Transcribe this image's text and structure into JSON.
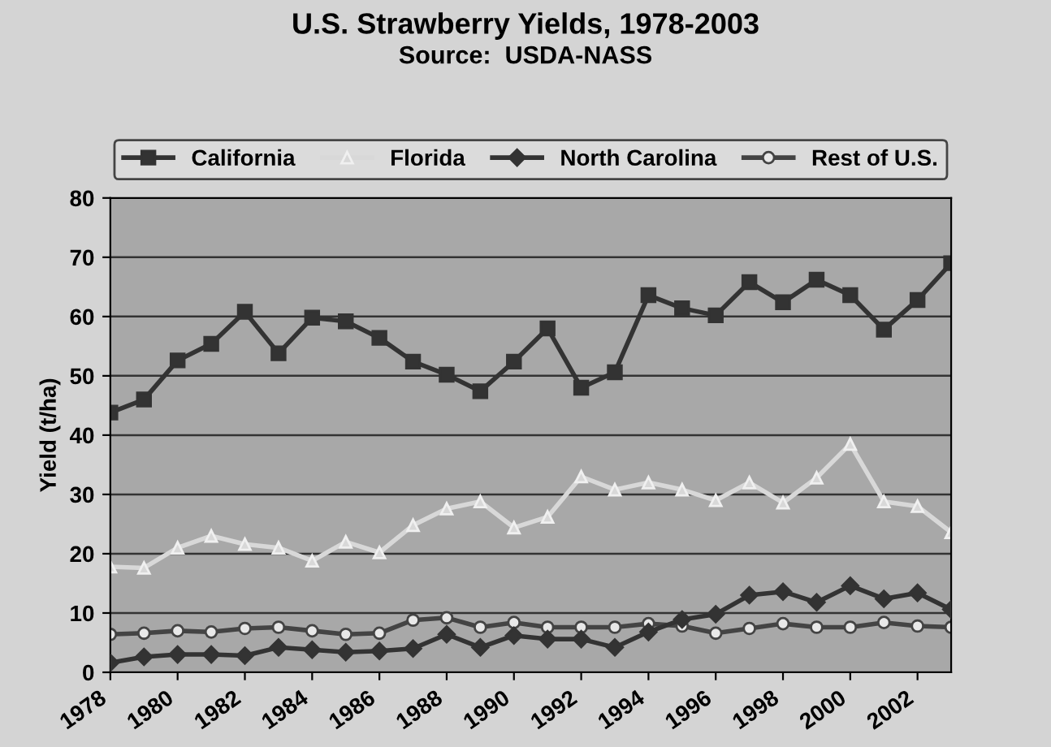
{
  "chart_data": {
    "type": "line",
    "title": "U.S. Strawberry Yields, 1978-2003",
    "subtitle": "Source:  USDA-NASS",
    "ylabel": "Yield (t/ha)",
    "x": [
      1978,
      1979,
      1980,
      1981,
      1982,
      1983,
      1984,
      1985,
      1986,
      1987,
      1988,
      1989,
      1990,
      1991,
      1992,
      1993,
      1994,
      1995,
      1996,
      1997,
      1998,
      1999,
      2000,
      2001,
      2002,
      2003
    ],
    "series": [
      {
        "name": "California",
        "color": "#333333",
        "marker": "square",
        "values": [
          43.8,
          46,
          52.6,
          55.4,
          60.8,
          53.8,
          59.8,
          59.2,
          56.4,
          52.4,
          50.2,
          47.4,
          52.4,
          58,
          48,
          50.6,
          63.6,
          61.4,
          60.2,
          65.8,
          62.4,
          66.2,
          63.6,
          57.8,
          62.8,
          69
        ]
      },
      {
        "name": "Florida",
        "color": "#d8d8d8",
        "marker": "triangle",
        "values": [
          17.8,
          17.6,
          21,
          23,
          21.6,
          21,
          18.8,
          22,
          20.2,
          24.8,
          27.6,
          28.8,
          24.4,
          26.2,
          33,
          30.8,
          32,
          30.8,
          29,
          32,
          28.6,
          32.8,
          38.5,
          28.8,
          28,
          23.6
        ]
      },
      {
        "name": "North Carolina",
        "color": "#333333",
        "marker": "diamond",
        "values": [
          1.6,
          2.6,
          3,
          3,
          2.8,
          4.2,
          3.8,
          3.4,
          3.6,
          4,
          6.4,
          4.2,
          6.2,
          5.6,
          5.6,
          4.2,
          6.8,
          8.9,
          9.8,
          13,
          13.6,
          11.8,
          14.6,
          12.4,
          13.4,
          10.6
        ]
      },
      {
        "name": "Rest of U.S.",
        "color": "#444444",
        "marker": "circle",
        "values": [
          6.4,
          6.6,
          7,
          6.8,
          7.4,
          7.6,
          7,
          6.4,
          6.6,
          8.8,
          9.2,
          7.6,
          8.4,
          7.6,
          7.6,
          7.6,
          8.2,
          7.8,
          6.6,
          7.4,
          8.2,
          7.6,
          7.6,
          8.4,
          7.8,
          7.6
        ]
      }
    ],
    "xlim": [
      1978,
      2003
    ],
    "xticks": [
      1978,
      1980,
      1982,
      1984,
      1986,
      1988,
      1990,
      1992,
      1994,
      1996,
      1998,
      2000,
      2002
    ],
    "ylim": [
      0,
      80
    ],
    "yticks": [
      0,
      10,
      20,
      30,
      40,
      50,
      60,
      70,
      80
    ],
    "grid": "y",
    "legend": "top",
    "line_style": "solid"
  }
}
